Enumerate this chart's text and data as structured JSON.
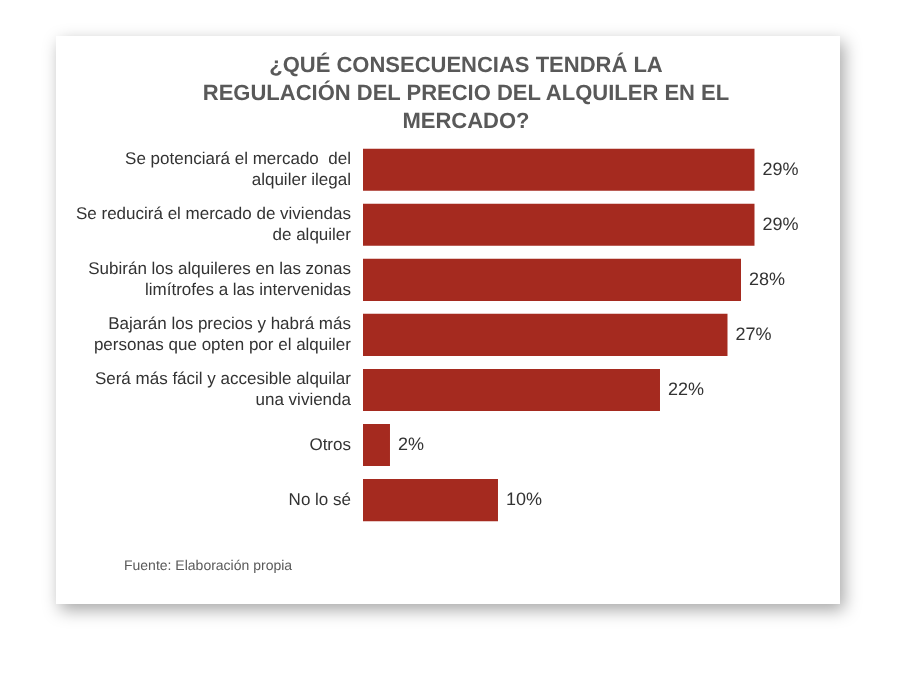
{
  "chart_data": {
    "type": "bar",
    "orientation": "horizontal",
    "title": "¿QUÉ CONSECUENCIAS TENDRÁ LA REGULACIÓN DEL PRECIO DEL ALQUILER EN EL MERCADO?",
    "categories": [
      "Se potenciará el mercado  del alquiler ilegal",
      "Se reducirá el mercado de viviendas de alquiler",
      "Subirán los alquileres en las zonas limítrofes a las intervenidas",
      "Bajarán los precios y habrá más personas que opten por el alquiler",
      "Será más fácil y accesible alquilar una vivienda",
      "Otros",
      "No lo sé"
    ],
    "values": [
      29,
      29,
      28,
      27,
      22,
      2,
      10
    ],
    "value_labels": [
      "29%",
      "29%",
      "28%",
      "27%",
      "22%",
      "2%",
      "10%"
    ],
    "color": "#a52a1f",
    "grid": false,
    "legend": false,
    "annotations": [
      "Fuente: Elaboración propia"
    ]
  }
}
